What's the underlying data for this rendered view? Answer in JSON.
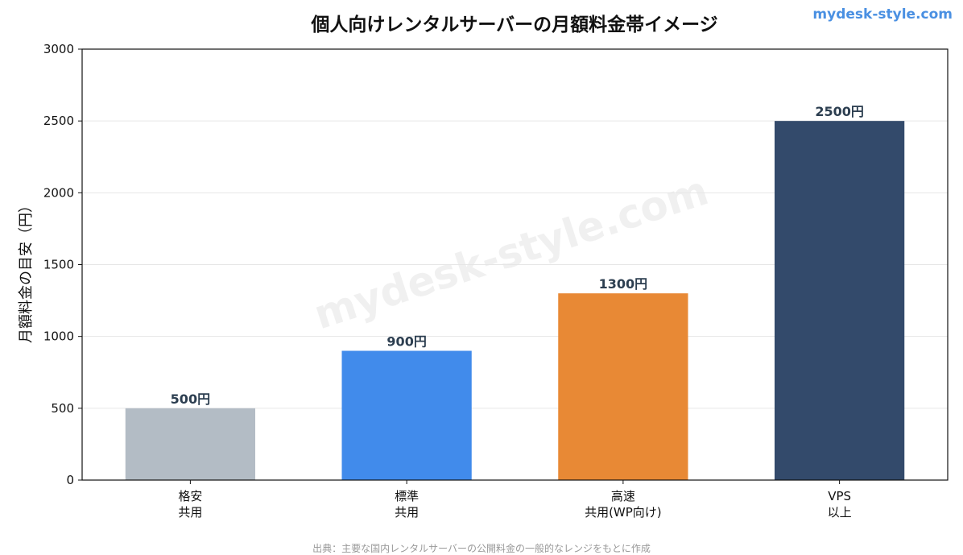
{
  "site_label": "mydesk-style.com",
  "watermark": "mydesk-style.com",
  "source_note": "出典：主要な国内レンタルサーバーの公開料金の一般的なレンジをもとに作成",
  "chart_data": {
    "type": "bar",
    "title": "個人向けレンタルサーバーの月額料金帯イメージ",
    "xlabel": "",
    "ylabel": "月額料金の目安（円）",
    "ylim": [
      0,
      3000
    ],
    "yticks": [
      0,
      500,
      1000,
      1500,
      2000,
      2500,
      3000
    ],
    "grid": "y",
    "categories": [
      [
        "格安",
        "共用"
      ],
      [
        "標準",
        "共用"
      ],
      [
        "高速",
        "共用(WP向け)"
      ],
      [
        "VPS",
        "以上"
      ]
    ],
    "values": [
      500,
      900,
      1300,
      2500
    ],
    "data_labels": [
      "500円",
      "900円",
      "1300円",
      "2500円"
    ],
    "colors": [
      "#b3bcc5",
      "#418beb",
      "#e88935",
      "#334a6b"
    ]
  }
}
